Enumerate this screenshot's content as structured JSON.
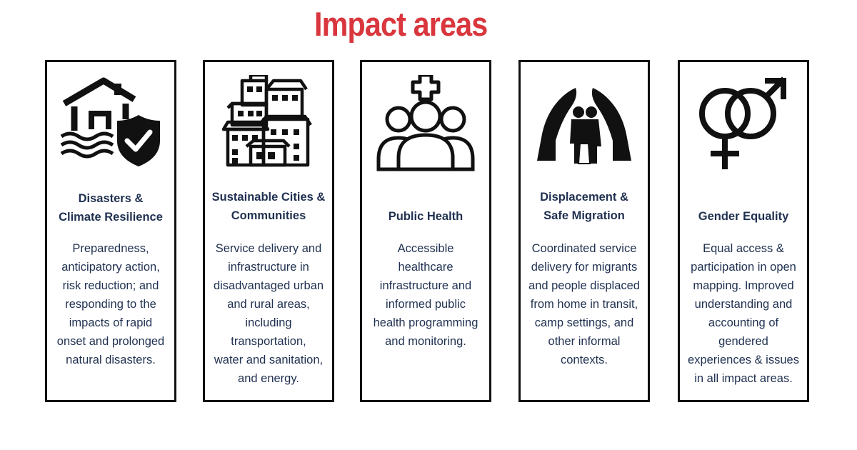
{
  "title": "Impact areas",
  "accent_color": "#d9363e",
  "text_color": "#1f3050",
  "cards": [
    {
      "icon": "flood-house-shield-icon",
      "title_lines": [
        "Disasters &",
        "Climate Resilience"
      ],
      "desc_lines": [
        "Preparedness,",
        "anticipatory action,",
        "risk reduction; and",
        "responding to the",
        "impacts of rapid",
        "onset and prolonged",
        "natural disasters."
      ]
    },
    {
      "icon": "city-buildings-icon",
      "title_lines": [
        "Sustainable Cities &",
        "Communities"
      ],
      "desc_lines": [
        "Service delivery and",
        "infrastructure in",
        "disadvantaged urban",
        "and rural areas,",
        "including",
        "transportation,",
        "water and sanitation,",
        "and energy."
      ]
    },
    {
      "icon": "people-health-cross-icon",
      "title_lines": [
        "Public Health"
      ],
      "desc_lines": [
        "Accessible",
        "healthcare",
        "infrastructure and",
        "informed public",
        "health programming",
        "and monitoring."
      ]
    },
    {
      "icon": "protected-family-hands-icon",
      "title_lines": [
        "Displacement &",
        "Safe Migration"
      ],
      "desc_lines": [
        "Coordinated service",
        "delivery for migrants",
        "and people displaced",
        "from home in transit,",
        "camp settings, and",
        "other informal",
        "contexts."
      ]
    },
    {
      "icon": "gender-symbols-icon",
      "title_lines": [
        "Gender Equality"
      ],
      "desc_lines": [
        "Equal access &",
        "participation in open",
        "mapping. Improved",
        "understanding and",
        "accounting of",
        "gendered",
        "experiences & issues",
        "in all impact areas."
      ]
    }
  ]
}
